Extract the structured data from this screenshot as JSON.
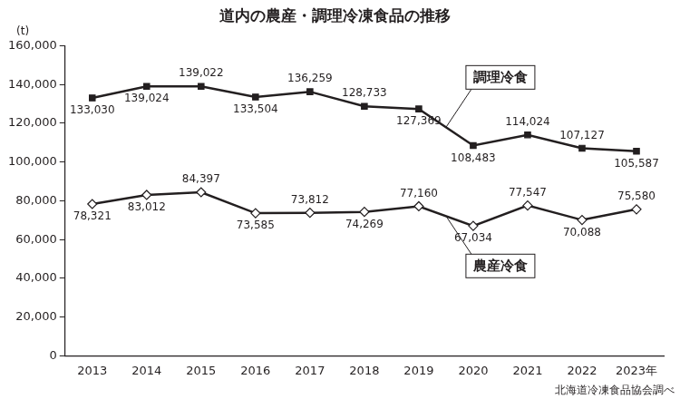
{
  "chart_data": {
    "type": "line",
    "title": "道内の農産・調理冷凍食品の推移",
    "y_label": "(t)",
    "source": "北海道冷凍食品協会調べ",
    "categories": [
      "2013",
      "2014",
      "2015",
      "2016",
      "2017",
      "2018",
      "2019",
      "2020",
      "2021",
      "2022",
      "2023年"
    ],
    "series": [
      {
        "name": "調理冷食",
        "color": "#231f20",
        "marker": "square",
        "values": [
          133030,
          139024,
          139022,
          133504,
          136259,
          128733,
          127369,
          108483,
          114024,
          107127,
          105587
        ],
        "value_labels": [
          "133,030",
          "139,024",
          "139,022",
          "133,504",
          "136,259",
          "128,733",
          "127,369",
          "108,483",
          "114,024",
          "107,127",
          "105,587"
        ]
      },
      {
        "name": "農産冷食",
        "color": "#231f20",
        "marker": "diamond",
        "values": [
          78321,
          83012,
          84397,
          73585,
          73812,
          74269,
          77160,
          67034,
          77547,
          70088,
          75580
        ],
        "value_labels": [
          "78,321",
          "83,012",
          "84,397",
          "73,585",
          "73,812",
          "74,269",
          "77,160",
          "67,034",
          "77,547",
          "70,088",
          "75,580"
        ]
      }
    ],
    "ylim": [
      0,
      160000
    ],
    "yticks": [
      0,
      {
        "value": 20000,
        "label": "20,000"
      },
      {
        "value": 40000,
        "label": "40,000"
      },
      {
        "value": 60000,
        "label": "60,000"
      },
      {
        "value": 80000,
        "label": "80,000"
      },
      {
        "value": 100000,
        "label": "100,000"
      },
      {
        "value": 120000,
        "label": "120,000"
      },
      {
        "value": 140000,
        "label": "140,000"
      },
      {
        "value": 160000,
        "label": "160,000"
      }
    ],
    "grid": false,
    "data_labels": true
  }
}
